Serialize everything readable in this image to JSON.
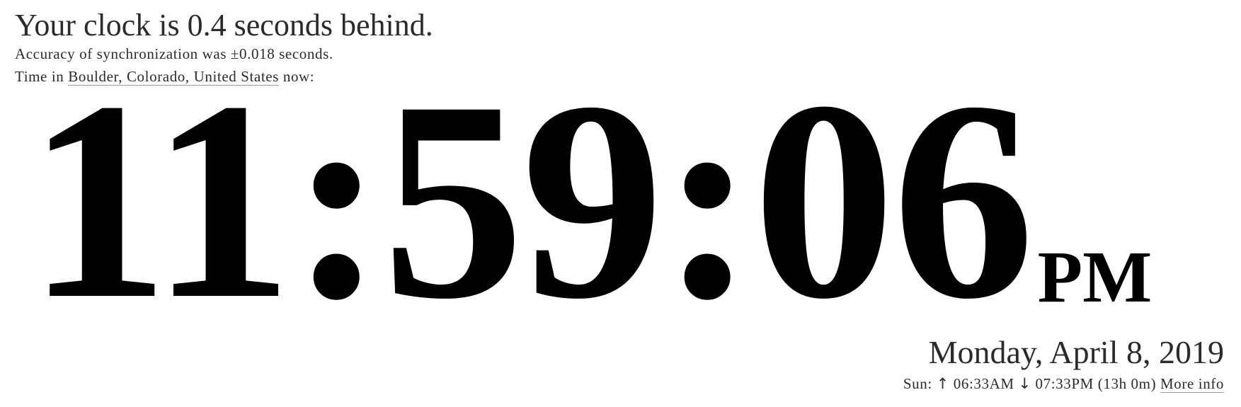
{
  "status": {
    "headline": "Your clock is 0.4 seconds behind.",
    "accuracy": "Accuracy of synchronization was ±0.018 seconds."
  },
  "location": {
    "prefix": "Time in",
    "place": "Boulder, Colorado, United States",
    "suffix": "now:"
  },
  "clock": {
    "time": "11:59:06",
    "ampm": "PM"
  },
  "date": "Monday, April 8, 2019",
  "sun": {
    "label": "Sun:",
    "rise_arrow": "↑",
    "sunrise": "06:33AM",
    "set_arrow": "↓",
    "sunset": "07:33PM",
    "daylight": "(13h 0m)",
    "more_info": "More info"
  }
}
